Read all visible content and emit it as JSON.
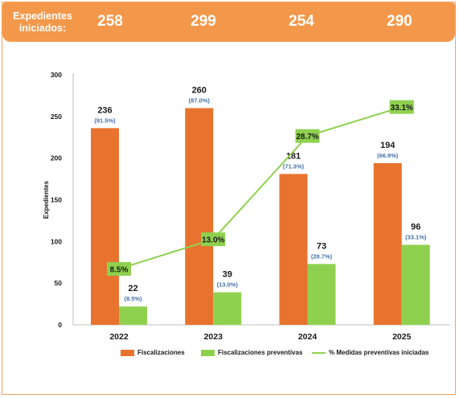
{
  "header": {
    "label": "Expedientes iniciados:",
    "values": [
      "258",
      "299",
      "254",
      "290"
    ]
  },
  "colors": {
    "fiscalizaciones": "#e8732f",
    "preventivas": "#8fd14f",
    "line": "#8fd14f",
    "pct_text": "#4472a8",
    "header_bg": "#f3984a"
  },
  "chart_data": {
    "type": "bar",
    "categories": [
      "2022",
      "2023",
      "2024",
      "2025"
    ],
    "ylabel": "Expedientes",
    "ylim": [
      0,
      300
    ],
    "yticks": [
      "0",
      "50",
      "100",
      "150",
      "200",
      "250",
      "300"
    ],
    "series": [
      {
        "name": "Fiscalizaciones",
        "values": [
          236,
          260,
          181,
          194
        ],
        "pct_labels": [
          "(91.5%)",
          "(87.0%)",
          "(71.3%)",
          "(66.9%)"
        ]
      },
      {
        "name": "Fiscalizaciones preventivas",
        "values": [
          22,
          39,
          73,
          96
        ],
        "pct_labels": [
          "(8.5%)",
          "(13.0%)",
          "(28.7%)",
          "(33.1%)"
        ]
      }
    ],
    "line_series": {
      "name": "% Medidas preventivas iniciadas",
      "values": [
        8.5,
        13.0,
        28.7,
        33.1
      ],
      "labels": [
        "8.5%",
        "13.0%",
        "28.7%",
        "33.1%"
      ]
    },
    "legend_position": "bottom",
    "grid": false
  }
}
